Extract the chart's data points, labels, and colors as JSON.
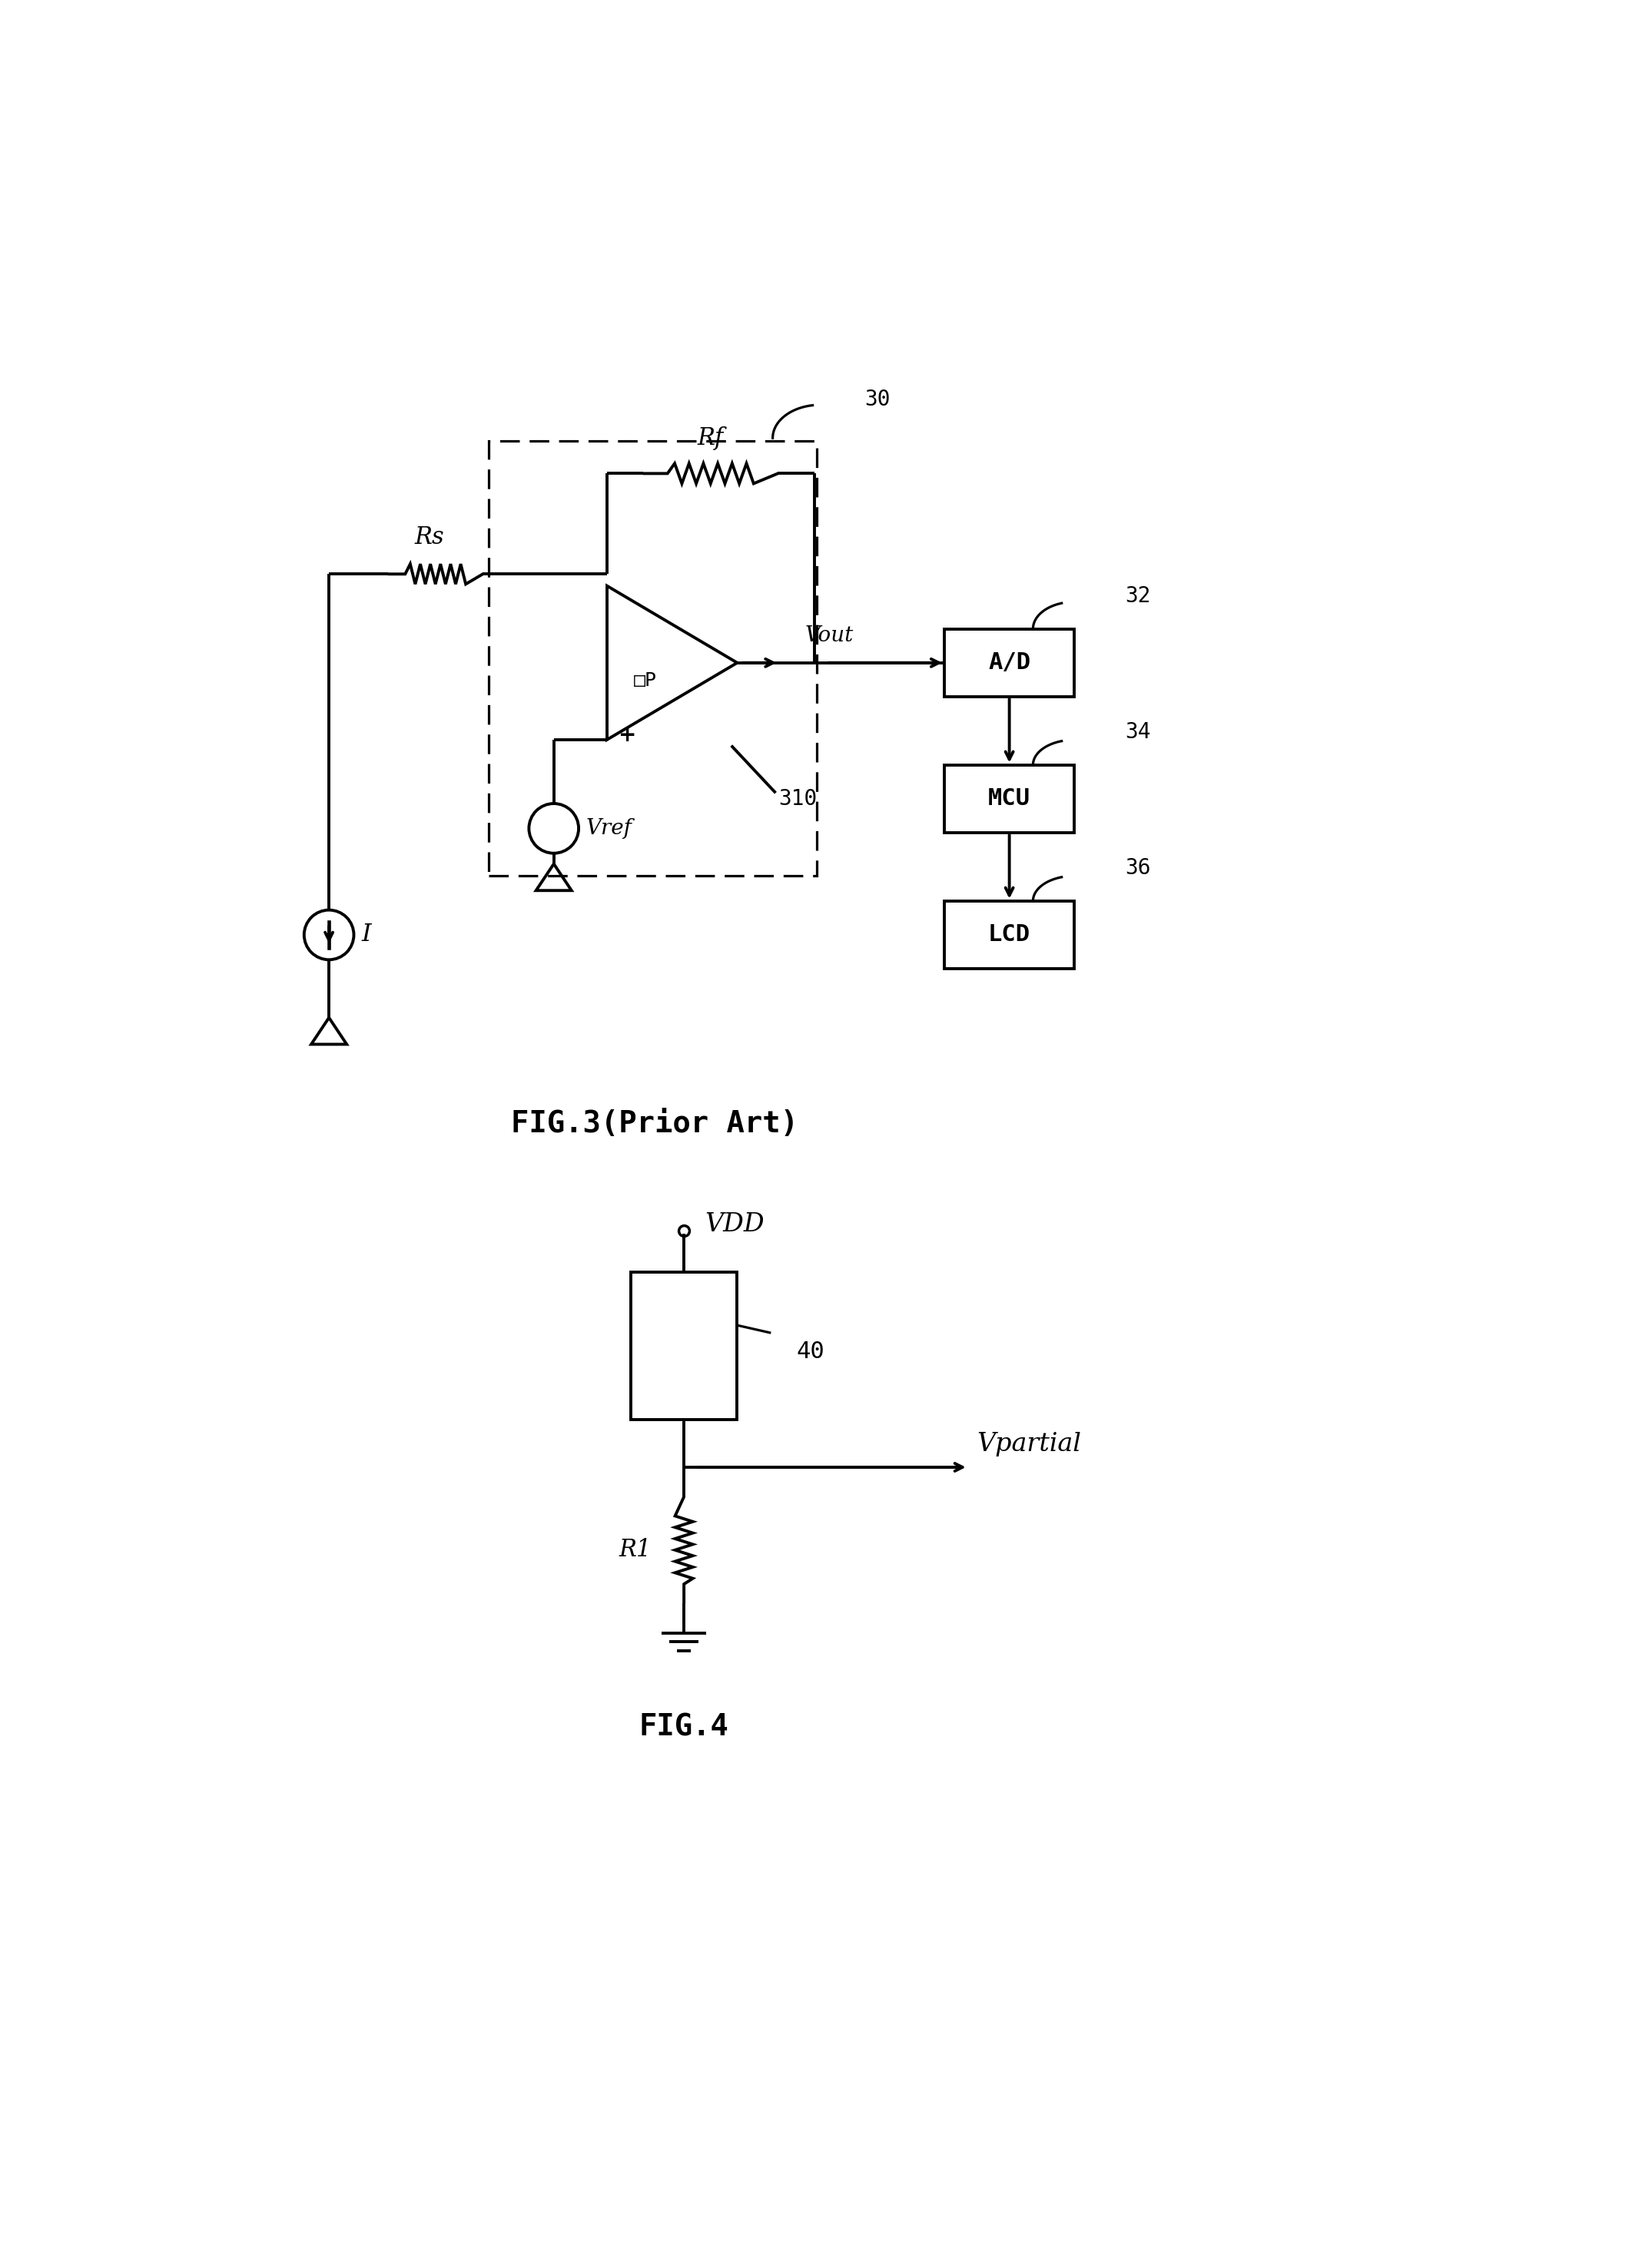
{
  "fig_width": 21.5,
  "fig_height": 29.42,
  "bg_color": "#ffffff",
  "line_color": "#000000",
  "line_width": 2.8,
  "fig3_title": "FIG.3(Prior Art)",
  "fig4_title": "FIG.4",
  "label_30": "30",
  "label_32": "32",
  "label_34": "34",
  "label_36": "36",
  "label_310": "310",
  "label_40": "40",
  "label_Rs": "Rs",
  "label_Rf": "Rf",
  "label_I": "I",
  "label_Vref": "Vref",
  "label_Vout": "Vout",
  "label_AD": "A/D",
  "label_MCU": "MCU",
  "label_LCD": "LCD",
  "label_OP": "□P",
  "label_VDD": "VDD",
  "label_R1": "R1",
  "label_Vpartial": "Vpartial"
}
